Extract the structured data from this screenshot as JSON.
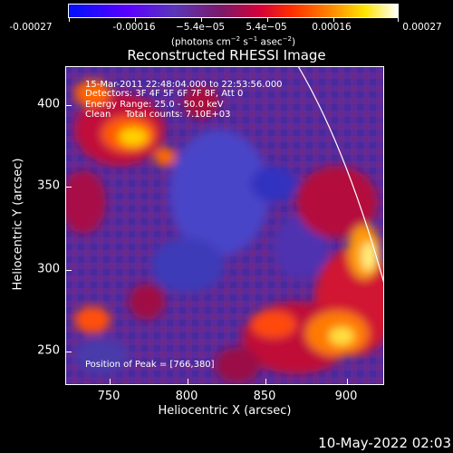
{
  "colorbar": {
    "labels": [
      "-0.00027",
      "-0.00016",
      "−5.4e−05",
      "5.4e−05",
      "0.00016",
      "0.00027"
    ],
    "units_pre": "(photons cm",
    "units_sup1": "−2",
    "units_mid": " s",
    "units_sup2": "−1",
    "units_post": " asec",
    "units_sup3": "−2",
    "units_end": ")"
  },
  "title": "Reconstructed RHESSI Image",
  "annotations": {
    "line1": "15-Mar-2011 22:48:04.000 to 22:53:56.000",
    "line2": "Detectors: 3F 4F 5F 6F 7F 8F, Att 0",
    "line3": "Energy Range: 25.0 - 50.0 keV",
    "line4": "Clean     Total counts: 7.10E+03",
    "peak": "Position of Peak = [766,380]"
  },
  "axes": {
    "xlabel": "Heliocentric X (arcsec)",
    "ylabel": "Heliocentric Y (arcsec)",
    "xticks": [
      "750",
      "800",
      "850",
      "900"
    ],
    "yticks": [
      "250",
      "300",
      "350",
      "400"
    ]
  },
  "footer": {
    "timestamp": "10-May-2022 02:03"
  },
  "colors": {
    "background": "#000000",
    "foreground": "#ffffff"
  }
}
